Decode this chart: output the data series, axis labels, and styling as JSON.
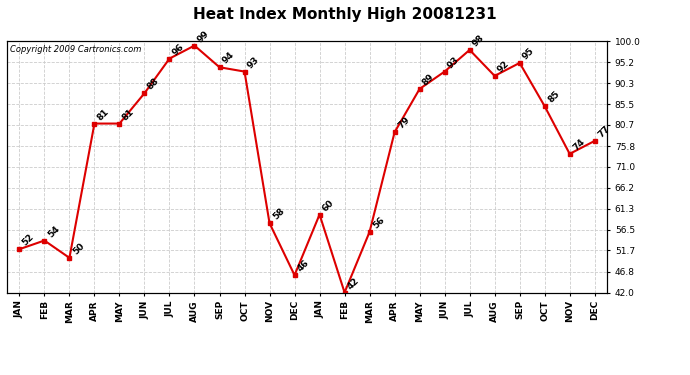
{
  "title": "Heat Index Monthly High 20081231",
  "copyright": "Copyright 2009 Cartronics.com",
  "months": [
    "JAN",
    "FEB",
    "MAR",
    "APR",
    "MAY",
    "JUN",
    "JUL",
    "AUG",
    "SEP",
    "OCT",
    "NOV",
    "DEC",
    "JAN",
    "FEB",
    "MAR",
    "APR",
    "MAY",
    "JUN",
    "JUL",
    "AUG",
    "SEP",
    "OCT",
    "NOV",
    "DEC"
  ],
  "values": [
    52,
    54,
    50,
    81,
    81,
    88,
    96,
    99,
    94,
    93,
    58,
    46,
    60,
    42,
    56,
    79,
    89,
    93,
    98,
    92,
    95,
    85,
    74,
    77
  ],
  "yticks": [
    42.0,
    46.8,
    51.7,
    56.5,
    61.3,
    66.2,
    71.0,
    75.8,
    80.7,
    85.5,
    90.3,
    95.2,
    100.0
  ],
  "ymin": 42.0,
  "ymax": 100.0,
  "line_color": "#dd0000",
  "marker_color": "#dd0000",
  "bg_color": "#ffffff",
  "grid_color": "#cccccc",
  "title_fontsize": 11,
  "tick_fontsize": 6.5,
  "annot_fontsize": 6.5,
  "copyright_fontsize": 6
}
